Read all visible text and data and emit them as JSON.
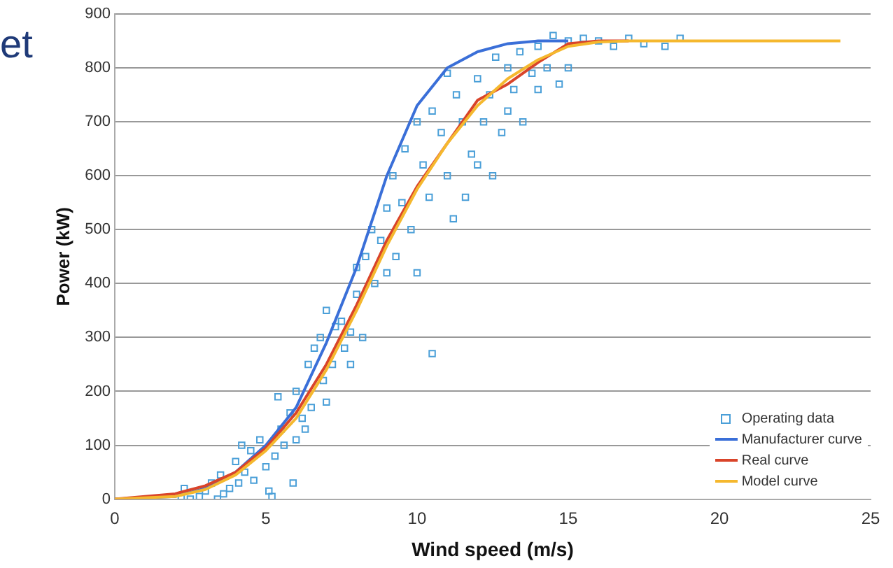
{
  "chart_data": {
    "type": "scatter",
    "xlabel": "Wind speed (m/s)",
    "ylabel": "Power (kW)",
    "xlim": [
      0,
      25
    ],
    "xticks": [
      0,
      5,
      10,
      15,
      20,
      25
    ],
    "ylim": [
      0,
      900
    ],
    "yticks": [
      0,
      100,
      200,
      300,
      400,
      500,
      600,
      700,
      800,
      900
    ],
    "grid": "y",
    "legend": "bottom right",
    "annotations": [
      "et"
    ],
    "series": [
      {
        "name": "Operating data",
        "marker": "square",
        "color": "#4a9fd8",
        "x": [
          2.2,
          2.3,
          2.5,
          2.8,
          3,
          3.2,
          3.4,
          3.5,
          3.6,
          3.8,
          4,
          4.1,
          4.2,
          4.3,
          4.5,
          4.6,
          4.8,
          5,
          5.1,
          5.2,
          5.3,
          5.4,
          5.5,
          5.6,
          5.8,
          5.9,
          6,
          6,
          6.2,
          6.3,
          6.4,
          6.5,
          6.6,
          6.8,
          6.9,
          7,
          7,
          7.2,
          7.3,
          7.5,
          7.6,
          7.8,
          7.8,
          8,
          8,
          8.2,
          8.3,
          8.5,
          8.6,
          8.8,
          9,
          9,
          9.2,
          9.3,
          9.5,
          9.6,
          9.8,
          10,
          10,
          10.2,
          10.4,
          10.5,
          10.5,
          10.8,
          11,
          11,
          11.2,
          11.3,
          11.5,
          11.6,
          11.8,
          12,
          12,
          12.2,
          12.4,
          12.5,
          12.6,
          12.8,
          13,
          13,
          13.2,
          13.4,
          13.5,
          13.8,
          14,
          14,
          14.3,
          14.5,
          14.7,
          15,
          15,
          15.5,
          16,
          16.5,
          17,
          17.5,
          18.2,
          18.7
        ],
        "values": [
          5,
          20,
          0,
          5,
          15,
          30,
          0,
          45,
          10,
          20,
          70,
          30,
          100,
          50,
          90,
          35,
          110,
          60,
          15,
          5,
          80,
          190,
          130,
          100,
          160,
          30,
          200,
          110,
          150,
          130,
          250,
          170,
          280,
          300,
          220,
          350,
          180,
          250,
          320,
          330,
          280,
          310,
          250,
          380,
          430,
          300,
          450,
          500,
          400,
          480,
          540,
          420,
          600,
          450,
          550,
          650,
          500,
          700,
          420,
          620,
          560,
          720,
          270,
          680,
          790,
          600,
          520,
          750,
          700,
          560,
          640,
          780,
          620,
          700,
          750,
          600,
          820,
          680,
          800,
          720,
          760,
          830,
          700,
          790,
          840,
          760,
          800,
          860,
          770,
          850,
          800,
          855,
          850,
          840,
          855,
          845,
          840,
          855
        ]
      },
      {
        "name": "Manufacturer curve",
        "type": "line",
        "marker": "none",
        "color": "#3a6fd8",
        "x": [
          0,
          2,
          3,
          4,
          5,
          6,
          7,
          8,
          9,
          10,
          11,
          12,
          13,
          14,
          15
        ],
        "values": [
          0,
          5,
          20,
          50,
          100,
          170,
          290,
          430,
          600,
          730,
          800,
          830,
          845,
          850,
          850
        ]
      },
      {
        "name": "Real curve",
        "type": "line",
        "marker": "none",
        "color": "#d9442a",
        "x": [
          0,
          2,
          3,
          4,
          5,
          6,
          7,
          8,
          9,
          10,
          11,
          12,
          13,
          14,
          15,
          16,
          17
        ],
        "values": [
          0,
          10,
          25,
          50,
          95,
          160,
          250,
          360,
          480,
          580,
          660,
          740,
          770,
          810,
          845,
          850,
          850
        ]
      },
      {
        "name": "Model curve",
        "type": "line",
        "marker": "none",
        "color": "#f5b82e",
        "x": [
          0,
          2,
          3,
          4,
          5,
          6,
          7,
          8,
          9,
          10,
          11,
          12,
          13,
          14,
          15,
          16,
          17,
          24
        ],
        "values": [
          0,
          5,
          18,
          45,
          90,
          150,
          240,
          350,
          470,
          575,
          660,
          730,
          780,
          815,
          840,
          848,
          850,
          850
        ]
      }
    ]
  }
}
